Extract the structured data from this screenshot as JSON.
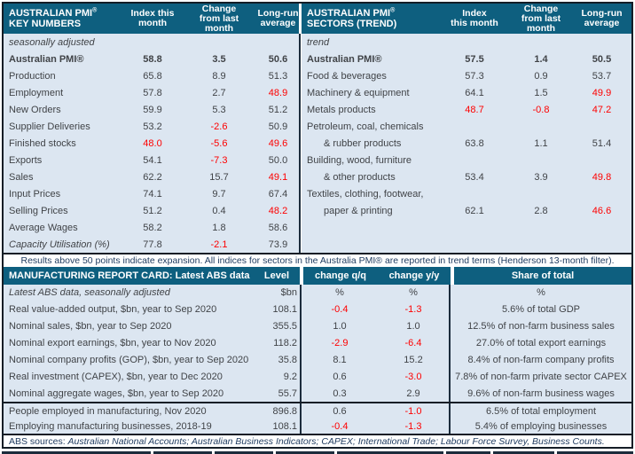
{
  "colors": {
    "header_teal": "#0e5f7f",
    "row_background": "#dce6f1",
    "negative_red": "#fe0000",
    "note_navy": "#1e3a5f",
    "border_dark": "#141d26"
  },
  "pmi_key_table": {
    "title_line1": "AUSTRALIAN PMI",
    "reg_mark": "®",
    "title_line2": "KEY NUMBERS",
    "col_headers": [
      "Index this\nmonth",
      "Change\nfrom last\nmonth",
      "Long-run\naverage"
    ],
    "rows": [
      {
        "label": "seasonally adjusted",
        "style": "italic",
        "values": [
          "",
          "",
          ""
        ]
      },
      {
        "label": "Australian PMI®",
        "style": "bold",
        "values": [
          "58.8",
          "3.5",
          "50.6"
        ],
        "red": [
          0,
          0,
          0
        ]
      },
      {
        "label": "Production",
        "values": [
          "65.8",
          "8.9",
          "51.3"
        ],
        "red": [
          0,
          0,
          0
        ]
      },
      {
        "label": "Employment",
        "values": [
          "57.8",
          "2.7",
          "48.9"
        ],
        "red": [
          0,
          0,
          1
        ]
      },
      {
        "label": "New Orders",
        "values": [
          "59.9",
          "5.3",
          "51.2"
        ],
        "red": [
          0,
          0,
          0
        ]
      },
      {
        "label": "Supplier Deliveries",
        "values": [
          "53.2",
          "-2.6",
          "50.9"
        ],
        "red": [
          0,
          1,
          0
        ]
      },
      {
        "label": "Finished stocks",
        "values": [
          "48.0",
          "-5.6",
          "49.6"
        ],
        "red": [
          1,
          1,
          1
        ]
      },
      {
        "label": "Exports",
        "values": [
          "54.1",
          "-7.3",
          "50.0"
        ],
        "red": [
          0,
          1,
          0
        ]
      },
      {
        "label": "Sales",
        "values": [
          "62.2",
          "15.7",
          "49.1"
        ],
        "red": [
          0,
          0,
          1
        ]
      },
      {
        "label": "Input Prices",
        "values": [
          "74.1",
          "9.7",
          "67.4"
        ],
        "red": [
          0,
          0,
          0
        ]
      },
      {
        "label": "Selling Prices",
        "values": [
          "51.2",
          "0.4",
          "48.2"
        ],
        "red": [
          0,
          0,
          1
        ]
      },
      {
        "label": "Average Wages",
        "values": [
          "58.2",
          "1.8",
          "58.6"
        ],
        "red": [
          0,
          0,
          0
        ]
      },
      {
        "label": "Capacity Utilisation (%)",
        "style": "italic",
        "values": [
          "77.8",
          "-2.1",
          "73.9"
        ],
        "red": [
          0,
          1,
          0
        ]
      }
    ]
  },
  "pmi_sectors_table": {
    "title_line1": "AUSTRALIAN PMI",
    "reg_mark": "®",
    "title_line2": "SECTORS (TREND)",
    "col_headers": [
      "Index\nthis month",
      "Change\nfrom last\nmonth",
      "Long-run\naverage"
    ],
    "rows": [
      {
        "label": "trend",
        "style": "italic",
        "values": [
          "",
          "",
          ""
        ]
      },
      {
        "label": "Australian PMI®",
        "style": "bold",
        "values": [
          "57.5",
          "1.4",
          "50.5"
        ],
        "red": [
          0,
          0,
          0
        ]
      },
      {
        "label": "Food & beverages",
        "values": [
          "57.3",
          "0.9",
          "53.7"
        ],
        "red": [
          0,
          0,
          0
        ]
      },
      {
        "label": "Machinery & equipment",
        "values": [
          "64.1",
          "1.5",
          "49.9"
        ],
        "red": [
          0,
          0,
          1
        ]
      },
      {
        "label": "Metals products",
        "values": [
          "48.7",
          "-0.8",
          "47.2"
        ],
        "red": [
          1,
          1,
          1
        ]
      },
      {
        "label": "Petroleum, coal, chemicals",
        "values": [
          "",
          "",
          ""
        ]
      },
      {
        "label": "& rubber products",
        "indent": true,
        "values": [
          "63.8",
          "1.1",
          "51.4"
        ],
        "red": [
          0,
          0,
          0
        ]
      },
      {
        "label": "Building, wood, furniture",
        "values": [
          "",
          "",
          ""
        ]
      },
      {
        "label": "& other products",
        "indent": true,
        "values": [
          "53.4",
          "3.9",
          "49.8"
        ],
        "red": [
          0,
          0,
          1
        ]
      },
      {
        "label": "Textiles, clothing, footwear,",
        "values": [
          "",
          "",
          ""
        ]
      },
      {
        "label": "paper & printing",
        "indent": true,
        "values": [
          "62.1",
          "2.8",
          "46.6"
        ],
        "red": [
          0,
          0,
          1
        ]
      }
    ]
  },
  "expansion_note": "Results above 50 points indicate expansion. All indices for sectors in the Australia PMI® are reported in trend terms (Henderson 13-month filter).",
  "report_card": {
    "title": "MANUFACTURING REPORT CARD: Latest ABS data",
    "col_headers": [
      "Level",
      "change q/q",
      "change y/y",
      "Share of total"
    ],
    "rows": [
      {
        "label": "Latest ABS data, seasonally adjusted",
        "style": "italic",
        "units": true,
        "values": [
          "$bn",
          "%",
          "%",
          "%"
        ],
        "red": [
          0,
          0,
          0,
          0
        ]
      },
      {
        "label": "Real value-added output, $bn, year to Sep 2020",
        "values": [
          "108.1",
          "-0.4",
          "-1.3",
          "5.6% of total GDP"
        ],
        "red": [
          0,
          1,
          1,
          0
        ]
      },
      {
        "label": "Nominal sales, $bn, year to Sep 2020",
        "values": [
          "355.5",
          "1.0",
          "1.0",
          "12.5% of non-farm business sales"
        ],
        "red": [
          0,
          0,
          0,
          0
        ]
      },
      {
        "label": "Nominal export earnings, $bn, year to Nov 2020",
        "values": [
          "118.2",
          "-2.9",
          "-6.4",
          "27.0% of total export earnings"
        ],
        "red": [
          0,
          1,
          1,
          0
        ]
      },
      {
        "label": "Nominal company profits (GOP), $bn, year to Sep 2020",
        "values": [
          "35.8",
          "8.1",
          "15.2",
          "8.4% of non-farm company profits"
        ],
        "red": [
          0,
          0,
          0,
          0
        ]
      },
      {
        "label": "Real investment (CAPEX), $bn, year to Dec 2020",
        "values": [
          "9.2",
          "0.6",
          "-3.0",
          "7.8% of non-farm private sector CAPEX"
        ],
        "red": [
          0,
          0,
          1,
          0
        ]
      },
      {
        "label": "Nominal aggregate wages, $bn, year to Sep 2020",
        "values": [
          "55.7",
          "0.3",
          "2.9",
          "9.6% of non-farm business wages"
        ],
        "red": [
          0,
          0,
          0,
          0
        ]
      },
      {
        "label": "People employed in manufacturing, Nov 2020",
        "sep_before": true,
        "short": true,
        "values": [
          "896.8",
          "0.6",
          "-1.0",
          "6.5% of total employment"
        ],
        "red": [
          0,
          0,
          1,
          0
        ]
      },
      {
        "label": "Employing manufacturing businesses, 2018-19",
        "short": true,
        "values": [
          "108.1",
          "-0.4",
          "-1.3",
          "5.4% of employing businesses"
        ],
        "red": [
          0,
          1,
          1,
          0
        ]
      }
    ]
  },
  "abs_footer": {
    "prefix": "ABS sources: ",
    "sources_italic": "Australian National Accounts; Australian Business Indicators; CAPEX; International Trade; Labour Force Survey, Business Counts."
  }
}
